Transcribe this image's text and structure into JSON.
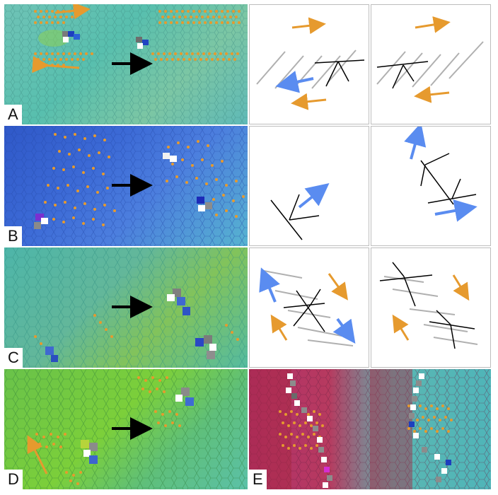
{
  "figure": {
    "panel_labels": [
      "A",
      "B",
      "C",
      "D",
      "E"
    ]
  },
  "colors": {
    "orange": "#e69a2e",
    "blue": "#5a8cf0",
    "black": "#000000",
    "gray_line": "#b0b0b0",
    "teal": "#58c2b8",
    "deep_blue": "#2e58c8",
    "green": "#6cc242",
    "magenta": "#b0306b"
  },
  "icons": {
    "transition_arrow": "black-right-arrow",
    "flow_arrow": "colored-arrow",
    "defect": "white-gray-cell-pair"
  }
}
